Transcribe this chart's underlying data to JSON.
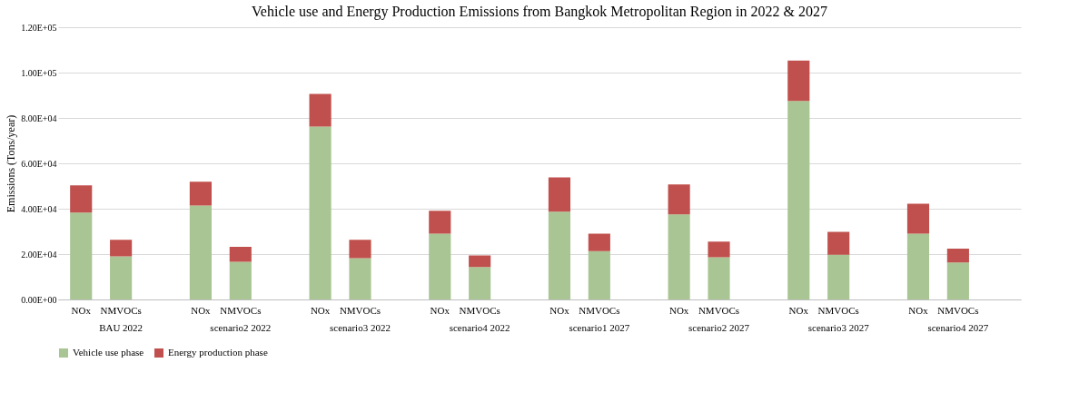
{
  "chart_data": {
    "type": "bar",
    "stacked": true,
    "title": "Vehicle use and Energy Production Emissions from Bangkok Metropolitan Region in 2022 & 2027",
    "ylabel": "Emissions (Tons/year)",
    "categories": [
      "NOx",
      "NMVOCs",
      null,
      "NOx",
      "NMVOCs",
      null,
      "NOx",
      "NMVOCs",
      null,
      "NOx",
      "NMVOCs",
      null,
      "NOx",
      "NMVOCs",
      null,
      "NOx",
      "NMVOCs",
      null,
      "NOx",
      "NMVOCs",
      null,
      "NOx",
      "NMVOCs",
      null
    ],
    "series": [
      {
        "name": "Vehicle use phase",
        "color": "#a9c593",
        "values": [
          38300,
          19000,
          null,
          41400,
          16600,
          null,
          76200,
          18200,
          null,
          29000,
          14300,
          null,
          38700,
          21300,
          null,
          37500,
          18600,
          null,
          87500,
          19700,
          null,
          29000,
          16300,
          null
        ]
      },
      {
        "name": "Energy production phase",
        "color": "#c0504d",
        "values": [
          12000,
          7300,
          null,
          10500,
          6600,
          null,
          14400,
          8100,
          null,
          10100,
          5100,
          null,
          15100,
          7700,
          null,
          13200,
          6900,
          null,
          17800,
          10100,
          null,
          13200,
          6100,
          null
        ]
      }
    ],
    "annotations": [
      "BAU 2022",
      "scenario2 2022",
      "scenario3 2022",
      "scenario4 2022",
      "scenario1 2027",
      "scenario2 2027",
      "scenario3 2027",
      "scenario4 2027"
    ],
    "ylim": [
      0,
      120000
    ],
    "yticks": [
      {
        "value": 0,
        "label": "0.00E+00"
      },
      {
        "value": 20000,
        "label": "2.00E+04"
      },
      {
        "value": 40000,
        "label": "4.00E+04"
      },
      {
        "value": 60000,
        "label": "6.00E+04"
      },
      {
        "value": 80000,
        "label": "8.00E+04"
      },
      {
        "value": 100000,
        "label": "1.00E+05"
      },
      {
        "value": 120000,
        "label": "1.20E+05"
      }
    ],
    "grid": "y",
    "legend": "bottom"
  }
}
